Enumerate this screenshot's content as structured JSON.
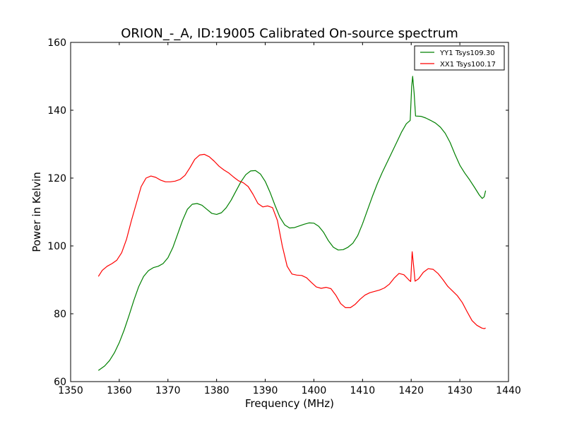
{
  "chart_data": {
    "type": "line",
    "title": "ORION_-_A, ID:19005 Calibrated On-source spectrum",
    "xlabel": "Frequency (MHz)",
    "ylabel": "Power in Kelvin",
    "xlim": [
      1350,
      1440
    ],
    "ylim": [
      60,
      160
    ],
    "x_ticks": [
      1350,
      1360,
      1370,
      1380,
      1390,
      1400,
      1410,
      1420,
      1430,
      1440
    ],
    "y_ticks": [
      60,
      80,
      100,
      120,
      140,
      160
    ],
    "grid": false,
    "legend_position": "top-right",
    "series": [
      {
        "name": "YY1 Tsys109.30",
        "color": "#008000",
        "points": [
          [
            1355.7,
            63.3
          ],
          [
            1357.0,
            64.6
          ],
          [
            1358.0,
            66.2
          ],
          [
            1359.0,
            68.5
          ],
          [
            1360.0,
            71.5
          ],
          [
            1361.0,
            75.2
          ],
          [
            1362.0,
            79.5
          ],
          [
            1363.0,
            84.0
          ],
          [
            1364.0,
            88.0
          ],
          [
            1365.0,
            91.0
          ],
          [
            1366.0,
            92.7
          ],
          [
            1367.0,
            93.6
          ],
          [
            1368.0,
            94.0
          ],
          [
            1369.0,
            94.8
          ],
          [
            1370.0,
            96.5
          ],
          [
            1371.0,
            99.5
          ],
          [
            1372.0,
            103.5
          ],
          [
            1373.0,
            107.5
          ],
          [
            1374.0,
            110.8
          ],
          [
            1375.0,
            112.3
          ],
          [
            1376.0,
            112.5
          ],
          [
            1377.0,
            112.0
          ],
          [
            1378.0,
            110.8
          ],
          [
            1379.0,
            109.6
          ],
          [
            1380.0,
            109.3
          ],
          [
            1381.0,
            109.8
          ],
          [
            1382.0,
            111.3
          ],
          [
            1383.0,
            113.5
          ],
          [
            1384.0,
            116.2
          ],
          [
            1385.0,
            118.9
          ],
          [
            1386.0,
            121.0
          ],
          [
            1387.0,
            122.1
          ],
          [
            1388.0,
            122.2
          ],
          [
            1389.0,
            121.2
          ],
          [
            1390.0,
            119.0
          ],
          [
            1391.0,
            115.8
          ],
          [
            1392.0,
            112.0
          ],
          [
            1393.0,
            108.5
          ],
          [
            1394.0,
            106.2
          ],
          [
            1395.0,
            105.3
          ],
          [
            1396.0,
            105.4
          ],
          [
            1397.0,
            105.9
          ],
          [
            1398.0,
            106.4
          ],
          [
            1399.0,
            106.8
          ],
          [
            1400.0,
            106.7
          ],
          [
            1401.0,
            105.8
          ],
          [
            1402.0,
            104.0
          ],
          [
            1403.0,
            101.5
          ],
          [
            1404.0,
            99.6
          ],
          [
            1405.0,
            98.8
          ],
          [
            1406.0,
            98.9
          ],
          [
            1407.0,
            99.6
          ],
          [
            1408.0,
            100.8
          ],
          [
            1409.0,
            103.0
          ],
          [
            1410.0,
            106.5
          ],
          [
            1411.0,
            110.5
          ],
          [
            1412.0,
            114.5
          ],
          [
            1413.0,
            118.2
          ],
          [
            1414.0,
            121.5
          ],
          [
            1415.0,
            124.5
          ],
          [
            1416.0,
            127.5
          ],
          [
            1417.0,
            130.5
          ],
          [
            1418.0,
            133.5
          ],
          [
            1419.0,
            136.0
          ],
          [
            1419.8,
            137.0
          ],
          [
            1420.1,
            147.0
          ],
          [
            1420.3,
            150.0
          ],
          [
            1420.6,
            145.0
          ],
          [
            1420.9,
            138.3
          ],
          [
            1422.0,
            138.2
          ],
          [
            1423.0,
            137.7
          ],
          [
            1424.0,
            137.0
          ],
          [
            1425.0,
            136.2
          ],
          [
            1426.0,
            135.0
          ],
          [
            1427.0,
            133.2
          ],
          [
            1428.0,
            130.5
          ],
          [
            1429.0,
            127.0
          ],
          [
            1430.0,
            123.8
          ],
          [
            1431.0,
            121.5
          ],
          [
            1432.0,
            119.5
          ],
          [
            1433.0,
            117.3
          ],
          [
            1434.0,
            115.0
          ],
          [
            1434.6,
            114.0
          ],
          [
            1435.0,
            114.5
          ],
          [
            1435.3,
            116.3
          ]
        ]
      },
      {
        "name": "XX1 Tsys100.17",
        "color": "#ff0000",
        "points": [
          [
            1355.7,
            91.0
          ],
          [
            1356.5,
            92.8
          ],
          [
            1357.5,
            94.0
          ],
          [
            1358.5,
            94.8
          ],
          [
            1359.5,
            95.8
          ],
          [
            1360.5,
            98.0
          ],
          [
            1361.5,
            102.0
          ],
          [
            1362.5,
            107.5
          ],
          [
            1363.5,
            112.5
          ],
          [
            1364.5,
            117.5
          ],
          [
            1365.5,
            120.0
          ],
          [
            1366.5,
            120.6
          ],
          [
            1367.5,
            120.2
          ],
          [
            1368.5,
            119.4
          ],
          [
            1369.5,
            118.9
          ],
          [
            1370.5,
            118.9
          ],
          [
            1371.5,
            119.1
          ],
          [
            1372.5,
            119.6
          ],
          [
            1373.5,
            120.8
          ],
          [
            1374.5,
            123.0
          ],
          [
            1375.5,
            125.5
          ],
          [
            1376.5,
            126.8
          ],
          [
            1377.5,
            127.0
          ],
          [
            1378.5,
            126.3
          ],
          [
            1379.5,
            125.0
          ],
          [
            1380.5,
            123.5
          ],
          [
            1381.5,
            122.4
          ],
          [
            1382.5,
            121.5
          ],
          [
            1383.5,
            120.3
          ],
          [
            1384.5,
            119.2
          ],
          [
            1385.5,
            118.6
          ],
          [
            1386.5,
            117.5
          ],
          [
            1387.5,
            115.2
          ],
          [
            1388.5,
            112.5
          ],
          [
            1389.5,
            111.5
          ],
          [
            1390.5,
            111.8
          ],
          [
            1391.5,
            111.3
          ],
          [
            1392.5,
            107.5
          ],
          [
            1393.5,
            100.0
          ],
          [
            1394.5,
            94.0
          ],
          [
            1395.5,
            91.7
          ],
          [
            1396.5,
            91.4
          ],
          [
            1397.5,
            91.3
          ],
          [
            1398.5,
            90.6
          ],
          [
            1399.5,
            89.2
          ],
          [
            1400.5,
            87.9
          ],
          [
            1401.5,
            87.5
          ],
          [
            1402.5,
            87.8
          ],
          [
            1403.5,
            87.4
          ],
          [
            1404.5,
            85.5
          ],
          [
            1405.5,
            83.0
          ],
          [
            1406.5,
            81.8
          ],
          [
            1407.5,
            81.8
          ],
          [
            1408.5,
            82.8
          ],
          [
            1409.5,
            84.3
          ],
          [
            1410.5,
            85.5
          ],
          [
            1411.5,
            86.2
          ],
          [
            1412.5,
            86.6
          ],
          [
            1413.5,
            87.0
          ],
          [
            1414.5,
            87.6
          ],
          [
            1415.5,
            88.7
          ],
          [
            1416.5,
            90.5
          ],
          [
            1417.5,
            91.9
          ],
          [
            1418.5,
            91.5
          ],
          [
            1419.5,
            90.0
          ],
          [
            1419.9,
            89.5
          ],
          [
            1420.2,
            98.3
          ],
          [
            1420.5,
            94.0
          ],
          [
            1420.8,
            89.6
          ],
          [
            1421.5,
            90.3
          ],
          [
            1422.5,
            92.2
          ],
          [
            1423.5,
            93.3
          ],
          [
            1424.5,
            93.1
          ],
          [
            1425.5,
            91.9
          ],
          [
            1426.5,
            90.1
          ],
          [
            1427.5,
            88.1
          ],
          [
            1428.5,
            86.7
          ],
          [
            1429.5,
            85.3
          ],
          [
            1430.5,
            83.3
          ],
          [
            1431.5,
            80.6
          ],
          [
            1432.5,
            78.0
          ],
          [
            1433.5,
            76.6
          ],
          [
            1434.5,
            75.8
          ],
          [
            1435.0,
            75.6
          ],
          [
            1435.3,
            75.8
          ]
        ]
      }
    ]
  }
}
